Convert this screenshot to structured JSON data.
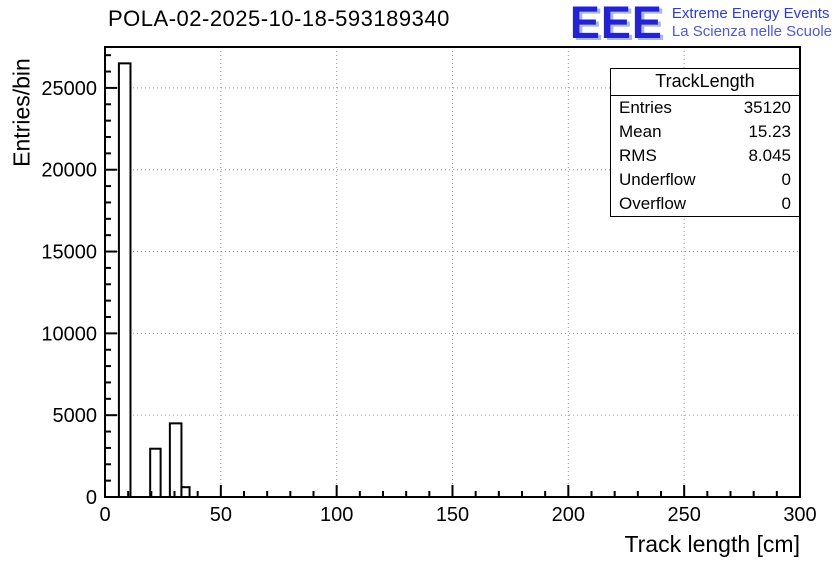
{
  "logo": {
    "acronym": "EEE",
    "line1": "Extreme Energy Events",
    "line2": "La Scienza nelle Scuole",
    "color": "#2323d2",
    "shadow_color": "#a9b8e0",
    "line1_color": "#2e3cd4",
    "line2_color": "#4d5ad2"
  },
  "stats": {
    "title": "TrackLength",
    "rows": [
      {
        "label": "Entries",
        "value": "35120"
      },
      {
        "label": "Mean",
        "value": "15.23"
      },
      {
        "label": "RMS",
        "value": "8.045"
      },
      {
        "label": "Underflow",
        "value": "0"
      },
      {
        "label": "Overflow",
        "value": "0"
      }
    ]
  },
  "chart_data": {
    "type": "bar",
    "title": "POLA-02-2025-10-18-593189340",
    "xlabel": "Track length [cm]",
    "ylabel": "Entries/bin",
    "xlim": [
      0,
      300
    ],
    "ylim": [
      0,
      27500
    ],
    "x_major": 50,
    "x_minor": 10,
    "y_major": 5000,
    "y_minor": 1000,
    "grid": true,
    "legend": "none",
    "x_grid": [
      50,
      100,
      150,
      200,
      250
    ],
    "y_grid": [
      5000,
      10000,
      15000,
      20000,
      25000
    ],
    "x_ticks": [
      {
        "v": 0,
        "label": "0"
      },
      {
        "v": 50,
        "label": "50"
      },
      {
        "v": 100,
        "label": "100"
      },
      {
        "v": 150,
        "label": "150"
      },
      {
        "v": 200,
        "label": "200"
      },
      {
        "v": 250,
        "label": "250"
      },
      {
        "v": 300,
        "label": "300"
      }
    ],
    "y_ticks": [
      {
        "v": 0,
        "label": "0"
      },
      {
        "v": 5000,
        "label": "5000"
      },
      {
        "v": 10000,
        "label": "10000"
      },
      {
        "v": 15000,
        "label": "15000"
      },
      {
        "v": 20000,
        "label": "20000"
      },
      {
        "v": 25000,
        "label": "25000"
      }
    ],
    "bars": [
      {
        "x0": 6,
        "x1": 11,
        "y": 26500
      },
      {
        "x0": 19.5,
        "x1": 24,
        "y": 2950
      },
      {
        "x0": 28,
        "x1": 33,
        "y": 4500
      },
      {
        "x0": 33,
        "x1": 36.5,
        "y": 600
      }
    ]
  }
}
